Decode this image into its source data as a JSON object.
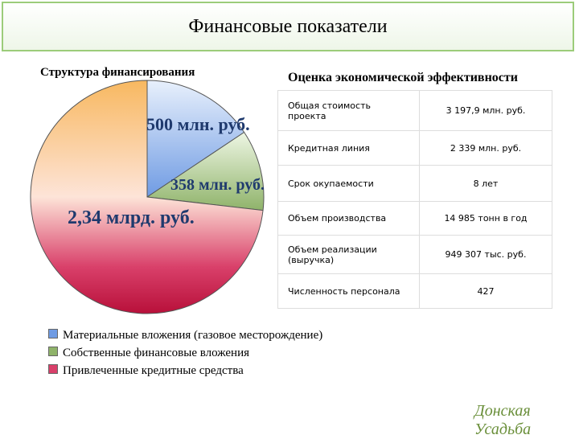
{
  "title": "Финансовые показатели",
  "chart_data": {
    "type": "pie",
    "title": "Структура финансирования",
    "categories": [
      "Материальные вложения (газовое месторождение)",
      "Собственные финансовые вложения",
      "Привлеченные кредитные средства"
    ],
    "values": [
      500,
      358,
      2340
    ],
    "value_labels": [
      "500 млн. руб.",
      "358 млн. руб.",
      "2,34 млрд. руб."
    ],
    "colors": [
      "#6f9be3",
      "#8fb36a",
      "#d9406a"
    ]
  },
  "table": {
    "title": "Оценка экономической эффективности",
    "rows": [
      [
        "Общая стоимость проекта",
        "3 197,9 млн. руб."
      ],
      [
        "Кредитная линия",
        "2 339 млн. руб."
      ],
      [
        "Срок окупаемости",
        "8 лет"
      ],
      [
        "Объем производства",
        "14 985 тонн в год"
      ],
      [
        "Объем реализации (выручка)",
        "949 307 тыс. руб."
      ],
      [
        "Численность персонала",
        "427"
      ]
    ]
  },
  "logo": "Донская Усадьба"
}
